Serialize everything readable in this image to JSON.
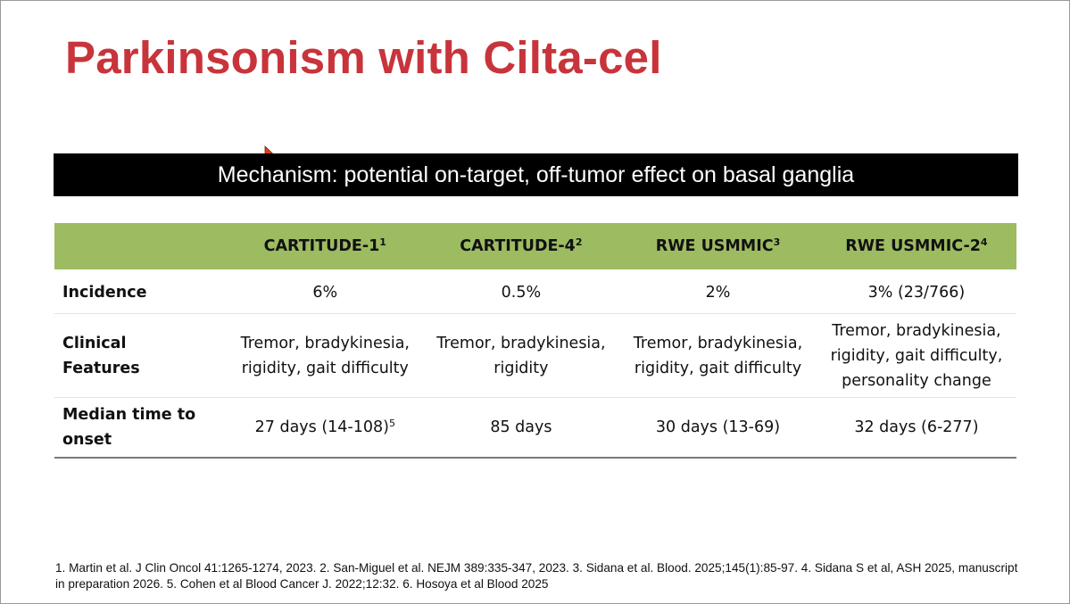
{
  "slide": {
    "title": "Parkinsonism with Cilta-cel",
    "mechanism_banner": "Mechanism: potential on-target, off-tumor effect on basal ganglia",
    "title_color": "#c8343b",
    "header_color": "#9dbb61"
  },
  "table": {
    "columns": [
      {
        "label": "CARTITUDE-1",
        "ref": "1"
      },
      {
        "label": "CARTITUDE-4",
        "ref": "2"
      },
      {
        "label": "RWE USMMIC",
        "ref": "3"
      },
      {
        "label": "RWE USMMIC-2",
        "ref": "4"
      }
    ],
    "rows": [
      {
        "label": "Incidence",
        "cells": [
          "6%",
          "0.5%",
          "2%",
          "3% (23/766)"
        ]
      },
      {
        "label": "Clinical Features",
        "cells": [
          "Tremor, bradykinesia, rigidity, gait difficulty",
          "Tremor, bradykinesia, rigidity",
          "Tremor, bradykinesia, rigidity, gait difficulty",
          "Tremor, bradykinesia, rigidity, gait difficulty, personality change"
        ]
      },
      {
        "label": "Median time to onset",
        "cells": [
          "27 days (14-108)",
          "85 days",
          "30 days (13-69)",
          "32 days (6-277)"
        ],
        "first_cell_ref": "5"
      }
    ]
  },
  "footnote": "1. Martin et al. J Clin Oncol 41:1265-1274, 2023. 2. San-Miguel et al. NEJM 389:335-347, 2023. 3. Sidana et al. Blood. 2025;145(1):85-97. 4. Sidana S et al, ASH 2025, manuscript in preparation 2026. 5. Cohen et al Blood Cancer J. 2022;12:32.  6. Hosoya et al Blood 2025",
  "cursor": {
    "icon": "mouse-pointer-icon",
    "color": "#d6421b"
  }
}
